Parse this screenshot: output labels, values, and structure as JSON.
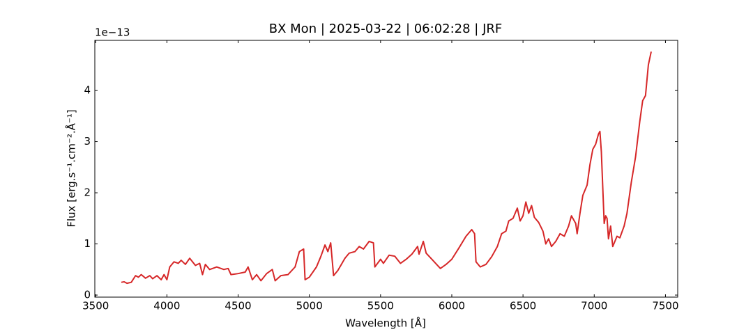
{
  "chart_data": {
    "type": "line",
    "title": "BX Mon | 2025-03-22 | 06:02:28 | JRF",
    "x_label": "Wavelength [Å]",
    "y_label": "Flux [erg.s⁻¹.cm⁻².Å⁻¹]",
    "y_offset_label": "1e−13",
    "xlim": [
      3494,
      7586
    ],
    "ylim": [
      -0.04,
      4.98
    ],
    "xticks": [
      3500,
      4000,
      4500,
      5000,
      5500,
      6000,
      6500,
      7000,
      7500
    ],
    "yticks": [
      0,
      1,
      2,
      3,
      4
    ],
    "tick_direction": "in",
    "series": [
      {
        "color": "#d62728",
        "x": [
          3680,
          3700,
          3720,
          3750,
          3780,
          3800,
          3820,
          3850,
          3880,
          3900,
          3930,
          3960,
          3980,
          4000,
          4020,
          4050,
          4080,
          4100,
          4130,
          4160,
          4200,
          4230,
          4250,
          4270,
          4300,
          4350,
          4400,
          4430,
          4450,
          4500,
          4550,
          4570,
          4600,
          4630,
          4660,
          4700,
          4740,
          4760,
          4800,
          4850,
          4900,
          4930,
          4960,
          4970,
          5000,
          5050,
          5080,
          5110,
          5130,
          5150,
          5170,
          5200,
          5250,
          5280,
          5320,
          5350,
          5380,
          5420,
          5450,
          5460,
          5500,
          5520,
          5560,
          5600,
          5640,
          5680,
          5720,
          5760,
          5770,
          5800,
          5820,
          5860,
          5900,
          5920,
          5960,
          6000,
          6050,
          6100,
          6140,
          6160,
          6170,
          6200,
          6240,
          6280,
          6320,
          6350,
          6380,
          6400,
          6430,
          6460,
          6480,
          6500,
          6520,
          6540,
          6560,
          6580,
          6610,
          6640,
          6660,
          6680,
          6700,
          6730,
          6760,
          6790,
          6820,
          6840,
          6870,
          6880,
          6900,
          6920,
          6950,
          6970,
          6990,
          7010,
          7030,
          7040,
          7050,
          7070,
          7080,
          7090,
          7100,
          7115,
          7130,
          7160,
          7180,
          7210,
          7230,
          7260,
          7290,
          7320,
          7340,
          7360,
          7380,
          7400
        ],
        "values": [
          0.25,
          0.26,
          0.23,
          0.25,
          0.38,
          0.35,
          0.4,
          0.33,
          0.38,
          0.32,
          0.38,
          0.3,
          0.4,
          0.3,
          0.55,
          0.65,
          0.62,
          0.68,
          0.6,
          0.72,
          0.58,
          0.62,
          0.4,
          0.6,
          0.5,
          0.55,
          0.5,
          0.52,
          0.4,
          0.42,
          0.45,
          0.55,
          0.3,
          0.4,
          0.28,
          0.42,
          0.5,
          0.28,
          0.38,
          0.4,
          0.55,
          0.85,
          0.9,
          0.3,
          0.35,
          0.55,
          0.75,
          0.98,
          0.85,
          1.02,
          0.38,
          0.48,
          0.72,
          0.82,
          0.85,
          0.95,
          0.9,
          1.05,
          1.02,
          0.55,
          0.7,
          0.62,
          0.78,
          0.76,
          0.62,
          0.7,
          0.8,
          0.95,
          0.8,
          1.05,
          0.82,
          0.7,
          0.58,
          0.52,
          0.6,
          0.7,
          0.92,
          1.15,
          1.28,
          1.2,
          0.65,
          0.55,
          0.6,
          0.75,
          0.95,
          1.2,
          1.25,
          1.45,
          1.5,
          1.7,
          1.45,
          1.55,
          1.82,
          1.6,
          1.75,
          1.52,
          1.42,
          1.25,
          1.0,
          1.1,
          0.95,
          1.05,
          1.2,
          1.15,
          1.35,
          1.55,
          1.4,
          1.2,
          1.6,
          1.95,
          2.15,
          2.55,
          2.85,
          2.95,
          3.15,
          3.2,
          2.8,
          1.4,
          1.55,
          1.5,
          1.1,
          1.35,
          0.95,
          1.15,
          1.12,
          1.35,
          1.6,
          2.2,
          2.7,
          3.4,
          3.8,
          3.9,
          4.5,
          4.76
        ]
      }
    ]
  }
}
